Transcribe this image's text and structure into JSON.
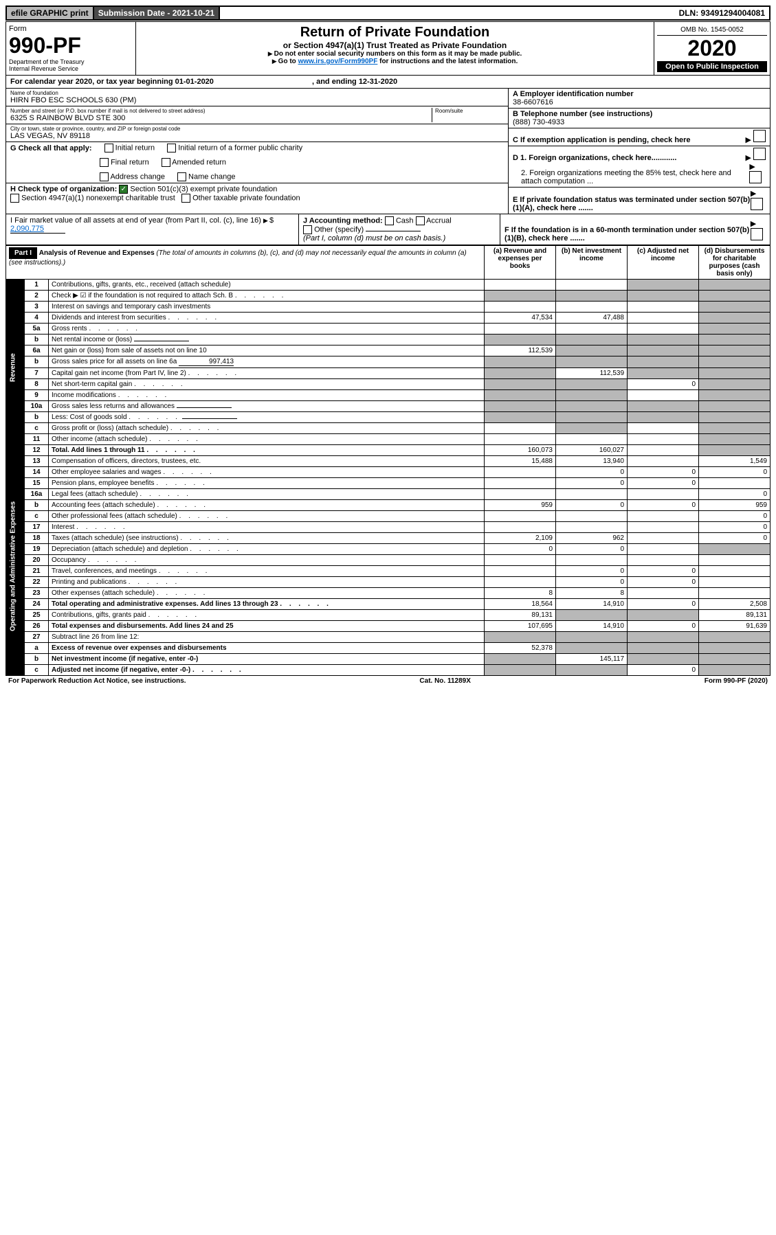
{
  "top": {
    "efile": "efile GRAPHIC print",
    "submission_label": "Submission Date - 2021-10-21",
    "dln": "DLN: 93491294004081"
  },
  "header": {
    "form_label": "Form",
    "form_no": "990-PF",
    "dept": "Department of the Treasury",
    "irs": "Internal Revenue Service",
    "title": "Return of Private Foundation",
    "subtitle": "or Section 4947(a)(1) Trust Treated as Private Foundation",
    "instr1": "Do not enter social security numbers on this form as it may be made public.",
    "instr2_pre": "Go to ",
    "instr2_link": "www.irs.gov/Form990PF",
    "instr2_post": " for instructions and the latest information.",
    "omb": "OMB No. 1545-0052",
    "year": "2020",
    "open": "Open to Public Inspection"
  },
  "cal": {
    "text_pre": "For calendar year 2020, or tax year beginning 01-01-2020",
    "text_mid": ", and ending 12-31-2020"
  },
  "id": {
    "name_label": "Name of foundation",
    "name": "HIRN FBO ESC SCHOOLS 630 (PM)",
    "addr_label": "Number and street (or P.O. box number if mail is not delivered to street address)",
    "room_label": "Room/suite",
    "addr": "6325 S RAINBOW BLVD STE 300",
    "city_label": "City or town, state or province, country, and ZIP or foreign postal code",
    "city": "LAS VEGAS, NV  89118",
    "a_label": "A Employer identification number",
    "a_val": "38-6607616",
    "b_label": "B Telephone number (see instructions)",
    "b_val": "(888) 730-4933",
    "c_label": "C If exemption application is pending, check here",
    "d1": "D 1. Foreign organizations, check here............",
    "d2": "2. Foreign organizations meeting the 85% test, check here and attach computation ...",
    "e": "E  If private foundation status was terminated under section 507(b)(1)(A), check here .......",
    "f": "F  If the foundation is in a 60-month termination under section 507(b)(1)(B), check here .......",
    "g_label": "G Check all that apply:",
    "g_opts": [
      "Initial return",
      "Initial return of a former public charity",
      "Final return",
      "Amended return",
      "Address change",
      "Name change"
    ],
    "h_label": "H Check type of organization:",
    "h_opt1": "Section 501(c)(3) exempt private foundation",
    "h_opt2": "Section 4947(a)(1) nonexempt charitable trust",
    "h_opt3": "Other taxable private foundation",
    "i_label": "I Fair market value of all assets at end of year (from Part II, col. (c), line 16)",
    "i_val": "2,090,775",
    "j_label": "J Accounting method:",
    "j_cash": "Cash",
    "j_accrual": "Accrual",
    "j_other": "Other (specify)",
    "j_note": "(Part I, column (d) must be on cash basis.)"
  },
  "part1": {
    "label": "Part I",
    "title": "Analysis of Revenue and Expenses",
    "title_note": "(The total of amounts in columns (b), (c), and (d) may not necessarily equal the amounts in column (a) (see instructions).)",
    "col_a": "(a)  Revenue and expenses per books",
    "col_b": "(b)  Net investment income",
    "col_c": "(c)  Adjusted net income",
    "col_d": "(d)  Disbursements for charitable purposes (cash basis only)",
    "side_rev": "Revenue",
    "side_exp": "Operating and Administrative Expenses"
  },
  "rows": [
    {
      "n": "1",
      "d": "Contributions, gifts, grants, etc., received (attach schedule)",
      "a": "",
      "b": "",
      "c": "s",
      "dcol": "s"
    },
    {
      "n": "2",
      "d": "Check ▶ ☑ if the foundation is not required to attach Sch. B",
      "dots": true,
      "a": "s",
      "b": "s",
      "c": "s",
      "dcol": "s"
    },
    {
      "n": "3",
      "d": "Interest on savings and temporary cash investments",
      "a": "",
      "b": "",
      "c": "",
      "dcol": "s"
    },
    {
      "n": "4",
      "d": "Dividends and interest from securities",
      "dots": true,
      "a": "47,534",
      "b": "47,488",
      "c": "",
      "dcol": "s"
    },
    {
      "n": "5a",
      "d": "Gross rents",
      "dots": true,
      "a": "",
      "b": "",
      "c": "",
      "dcol": "s"
    },
    {
      "n": "b",
      "d": "Net rental income or (loss)",
      "inline": true,
      "a": "s",
      "b": "s",
      "c": "s",
      "dcol": "s"
    },
    {
      "n": "6a",
      "d": "Net gain or (loss) from sale of assets not on line 10",
      "a": "112,539",
      "b": "s",
      "c": "s",
      "dcol": "s"
    },
    {
      "n": "b",
      "d": "Gross sales price for all assets on line 6a",
      "inline_val": "997,413",
      "a": "s",
      "b": "s",
      "c": "s",
      "dcol": "s"
    },
    {
      "n": "7",
      "d": "Capital gain net income (from Part IV, line 2)",
      "dots": true,
      "a": "s",
      "b": "112,539",
      "c": "s",
      "dcol": "s"
    },
    {
      "n": "8",
      "d": "Net short-term capital gain",
      "dots": true,
      "a": "s",
      "b": "s",
      "c": "0",
      "dcol": "s"
    },
    {
      "n": "9",
      "d": "Income modifications",
      "dots": true,
      "a": "s",
      "b": "s",
      "c": "",
      "dcol": "s"
    },
    {
      "n": "10a",
      "d": "Gross sales less returns and allowances",
      "inline": true,
      "a": "s",
      "b": "s",
      "c": "s",
      "dcol": "s"
    },
    {
      "n": "b",
      "d": "Less: Cost of goods sold",
      "dots": true,
      "inline": true,
      "a": "s",
      "b": "s",
      "c": "s",
      "dcol": "s"
    },
    {
      "n": "c",
      "d": "Gross profit or (loss) (attach schedule)",
      "dots": true,
      "a": "",
      "b": "s",
      "c": "",
      "dcol": "s"
    },
    {
      "n": "11",
      "d": "Other income (attach schedule)",
      "dots": true,
      "a": "",
      "b": "",
      "c": "",
      "dcol": "s"
    },
    {
      "n": "12",
      "d": "Total. Add lines 1 through 11",
      "dots": true,
      "bold": true,
      "a": "160,073",
      "b": "160,027",
      "c": "",
      "dcol": "s"
    },
    {
      "n": "13",
      "d": "Compensation of officers, directors, trustees, etc.",
      "a": "15,488",
      "b": "13,940",
      "c": "",
      "dcol": "1,549"
    },
    {
      "n": "14",
      "d": "Other employee salaries and wages",
      "dots": true,
      "a": "",
      "b": "0",
      "c": "0",
      "dcol": "0"
    },
    {
      "n": "15",
      "d": "Pension plans, employee benefits",
      "dots": true,
      "a": "",
      "b": "0",
      "c": "0",
      "dcol": ""
    },
    {
      "n": "16a",
      "d": "Legal fees (attach schedule)",
      "dots": true,
      "a": "",
      "b": "",
      "c": "",
      "dcol": "0"
    },
    {
      "n": "b",
      "d": "Accounting fees (attach schedule)",
      "dots": true,
      "a": "959",
      "b": "0",
      "c": "0",
      "dcol": "959"
    },
    {
      "n": "c",
      "d": "Other professional fees (attach schedule)",
      "dots": true,
      "a": "",
      "b": "",
      "c": "",
      "dcol": "0"
    },
    {
      "n": "17",
      "d": "Interest",
      "dots": true,
      "a": "",
      "b": "",
      "c": "",
      "dcol": "0"
    },
    {
      "n": "18",
      "d": "Taxes (attach schedule) (see instructions)",
      "dots": true,
      "a": "2,109",
      "b": "962",
      "c": "",
      "dcol": "0"
    },
    {
      "n": "19",
      "d": "Depreciation (attach schedule) and depletion",
      "dots": true,
      "a": "0",
      "b": "0",
      "c": "",
      "dcol": "s"
    },
    {
      "n": "20",
      "d": "Occupancy",
      "dots": true,
      "a": "",
      "b": "",
      "c": "",
      "dcol": ""
    },
    {
      "n": "21",
      "d": "Travel, conferences, and meetings",
      "dots": true,
      "a": "",
      "b": "0",
      "c": "0",
      "dcol": ""
    },
    {
      "n": "22",
      "d": "Printing and publications",
      "dots": true,
      "a": "",
      "b": "0",
      "c": "0",
      "dcol": ""
    },
    {
      "n": "23",
      "d": "Other expenses (attach schedule)",
      "dots": true,
      "a": "8",
      "b": "8",
      "c": "",
      "dcol": ""
    },
    {
      "n": "24",
      "d": "Total operating and administrative expenses. Add lines 13 through 23",
      "dots": true,
      "bold": true,
      "a": "18,564",
      "b": "14,910",
      "c": "0",
      "dcol": "2,508"
    },
    {
      "n": "25",
      "d": "Contributions, gifts, grants paid",
      "dots": true,
      "a": "89,131",
      "b": "s",
      "c": "s",
      "dcol": "89,131"
    },
    {
      "n": "26",
      "d": "Total expenses and disbursements. Add lines 24 and 25",
      "bold": true,
      "a": "107,695",
      "b": "14,910",
      "c": "0",
      "dcol": "91,639"
    },
    {
      "n": "27",
      "d": "Subtract line 26 from line 12:",
      "a": "s",
      "b": "s",
      "c": "s",
      "dcol": "s"
    },
    {
      "n": "a",
      "d": "Excess of revenue over expenses and disbursements",
      "bold": true,
      "a": "52,378",
      "b": "s",
      "c": "s",
      "dcol": "s"
    },
    {
      "n": "b",
      "d": "Net investment income (if negative, enter -0-)",
      "bold": true,
      "a": "s",
      "b": "145,117",
      "c": "s",
      "dcol": "s"
    },
    {
      "n": "c",
      "d": "Adjusted net income (if negative, enter -0-)",
      "dots": true,
      "bold": true,
      "a": "s",
      "b": "s",
      "c": "0",
      "dcol": "s"
    }
  ],
  "footer": {
    "left": "For Paperwork Reduction Act Notice, see instructions.",
    "mid": "Cat. No. 11289X",
    "right": "Form 990-PF (2020)"
  }
}
